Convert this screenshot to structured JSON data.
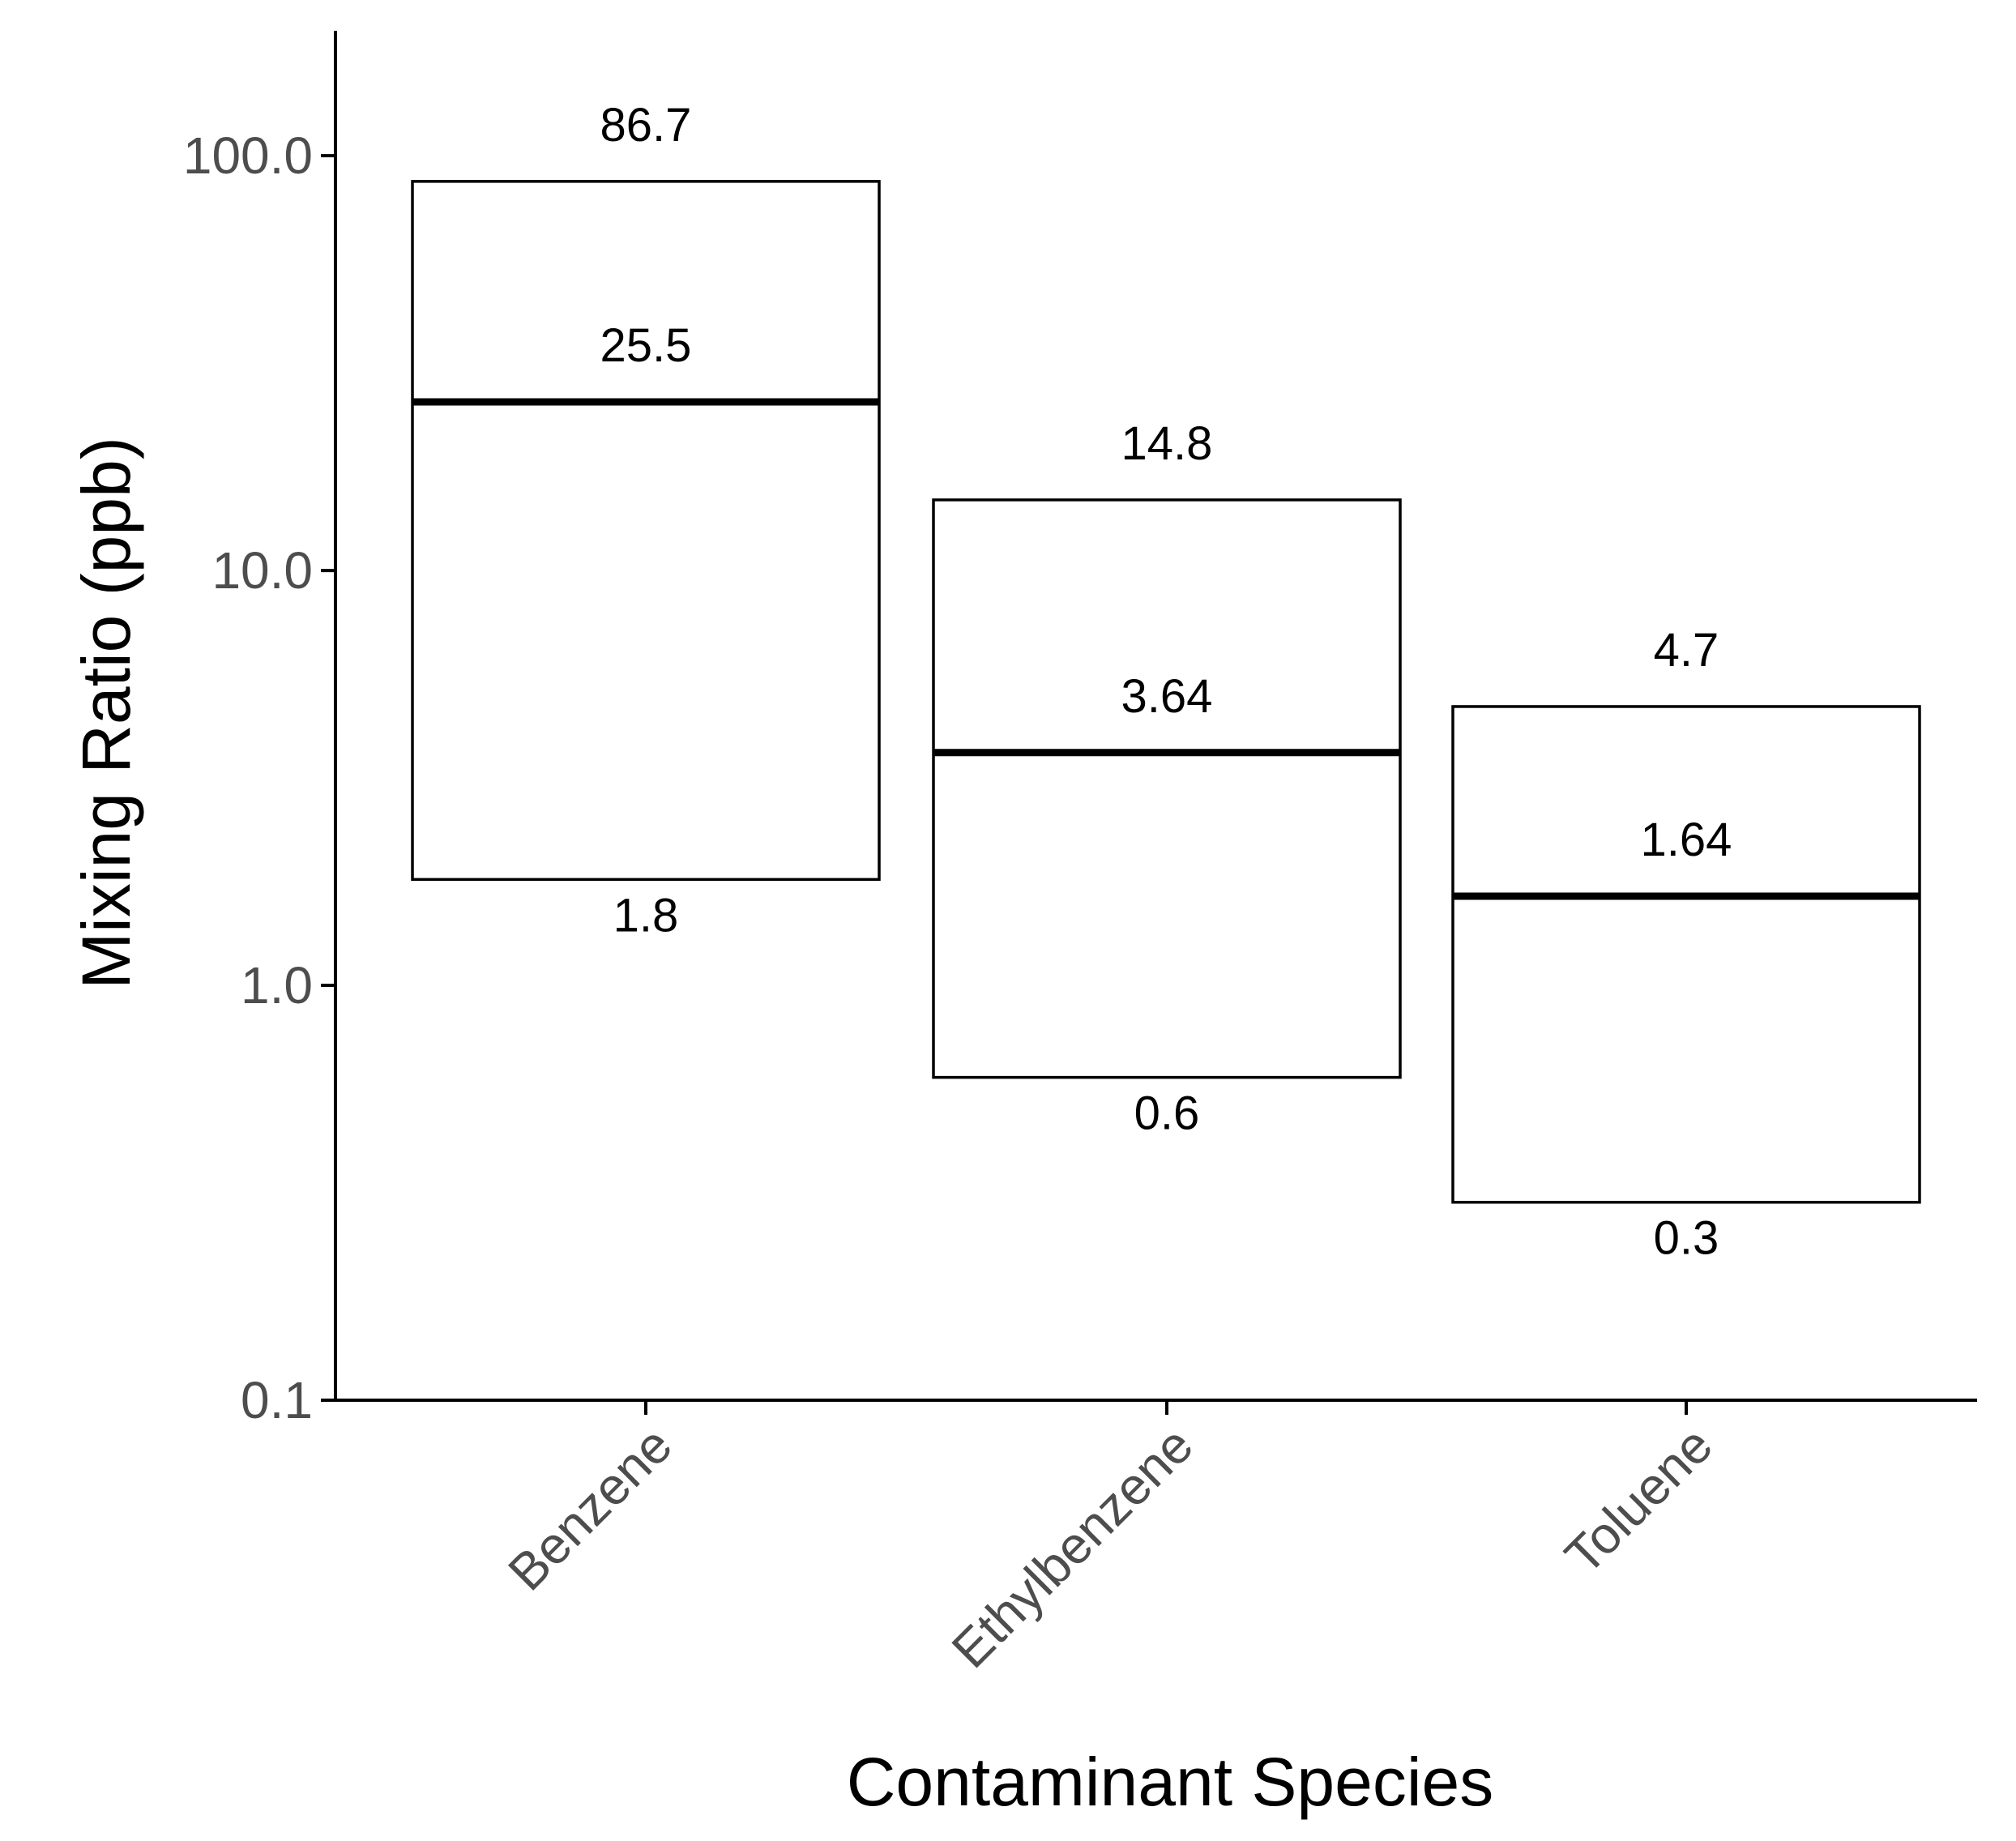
{
  "chart_data": {
    "type": "floating-bar",
    "title": "",
    "xlabel": "Contaminant Species",
    "ylabel": "Mixing Ratio (ppb)",
    "yscale": "log10",
    "ylim": [
      0.1,
      200
    ],
    "yticks": [
      0.1,
      1.0,
      10.0,
      100.0
    ],
    "ytick_labels": [
      "0.1",
      "1.0",
      "10.0",
      "100.0"
    ],
    "categories": [
      "Benzene",
      "Ethylbenzene",
      "Toluene"
    ],
    "series": [
      {
        "name": "max",
        "values": [
          86.7,
          14.8,
          4.7
        ],
        "labels": [
          "86.7",
          "14.8",
          "4.7"
        ]
      },
      {
        "name": "median",
        "values": [
          25.5,
          3.64,
          1.64
        ],
        "labels": [
          "25.5",
          "3.64",
          "1.64"
        ]
      },
      {
        "name": "min",
        "values": [
          1.8,
          0.6,
          0.3
        ],
        "labels": [
          "1.8",
          "0.6",
          "0.3"
        ]
      }
    ],
    "grid": false,
    "colors": {
      "box_stroke": "#000000",
      "box_fill": "#ffffff",
      "axis": "#000000",
      "tick_text": "#4d4d4d"
    }
  }
}
